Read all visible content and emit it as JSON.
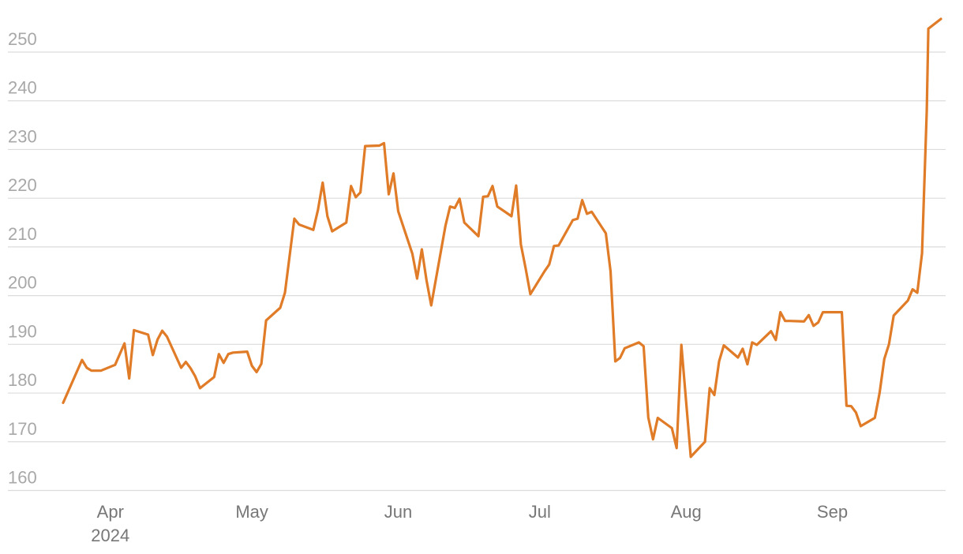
{
  "chart_data": {
    "type": "line",
    "ylim": [
      157,
      258
    ],
    "y_ticks": [
      160,
      170,
      180,
      190,
      200,
      210,
      220,
      230,
      240,
      250
    ],
    "x_ticks": [
      {
        "date": "2024-04-01",
        "label": "Apr",
        "sublabel": "2024"
      },
      {
        "date": "2024-05-01",
        "label": "May",
        "sublabel": ""
      },
      {
        "date": "2024-06-01",
        "label": "Jun",
        "sublabel": ""
      },
      {
        "date": "2024-07-01",
        "label": "Jul",
        "sublabel": ""
      },
      {
        "date": "2024-08-01",
        "label": "Aug",
        "sublabel": ""
      },
      {
        "date": "2024-09-01",
        "label": "Sep",
        "sublabel": ""
      }
    ],
    "xlim": [
      "2024-03-20",
      "2024-09-26"
    ],
    "grid": true,
    "line_color": "#e07b27",
    "series": [
      {
        "points": [
          [
            "2024-03-22",
            178
          ],
          [
            "2024-03-26",
            186.8
          ],
          [
            "2024-03-27",
            185.2
          ],
          [
            "2024-03-28",
            184.6
          ],
          [
            "2024-03-29",
            184.6
          ],
          [
            "2024-03-30",
            184.6
          ],
          [
            "2024-04-02",
            185.8
          ],
          [
            "2024-04-04",
            190.2
          ],
          [
            "2024-04-05",
            183
          ],
          [
            "2024-04-06",
            192.9
          ],
          [
            "2024-04-09",
            192
          ],
          [
            "2024-04-10",
            187.8
          ],
          [
            "2024-04-11",
            191
          ],
          [
            "2024-04-12",
            192.8
          ],
          [
            "2024-04-13",
            191.6
          ],
          [
            "2024-04-16",
            185.2
          ],
          [
            "2024-04-17",
            186.4
          ],
          [
            "2024-04-18",
            185.1
          ],
          [
            "2024-04-19",
            183.4
          ],
          [
            "2024-04-20",
            181
          ],
          [
            "2024-04-23",
            183.3
          ],
          [
            "2024-04-24",
            188
          ],
          [
            "2024-04-25",
            186.2
          ],
          [
            "2024-04-26",
            188
          ],
          [
            "2024-04-27",
            188.3
          ],
          [
            "2024-04-30",
            188.5
          ],
          [
            "2024-05-01",
            185.6
          ],
          [
            "2024-05-02",
            184.3
          ],
          [
            "2024-05-03",
            186
          ],
          [
            "2024-05-04",
            194.9
          ],
          [
            "2024-05-07",
            197.5
          ],
          [
            "2024-05-08",
            200.6
          ],
          [
            "2024-05-10",
            215.8
          ],
          [
            "2024-05-11",
            214.6
          ],
          [
            "2024-05-14",
            213.5
          ],
          [
            "2024-05-15",
            217.6
          ],
          [
            "2024-05-16",
            223.2
          ],
          [
            "2024-05-17",
            216.3
          ],
          [
            "2024-05-18",
            213.2
          ],
          [
            "2024-05-21",
            215
          ],
          [
            "2024-05-22",
            222.5
          ],
          [
            "2024-05-23",
            220.2
          ],
          [
            "2024-05-24",
            221.2
          ],
          [
            "2024-05-25",
            230.7
          ],
          [
            "2024-05-28",
            230.8
          ],
          [
            "2024-05-29",
            231.3
          ],
          [
            "2024-05-30",
            220.8
          ],
          [
            "2024-05-31",
            225.1
          ],
          [
            "2024-06-01",
            217.3
          ],
          [
            "2024-06-04",
            208.6
          ],
          [
            "2024-06-05",
            203.5
          ],
          [
            "2024-06-06",
            209.5
          ],
          [
            "2024-06-07",
            203.2
          ],
          [
            "2024-06-08",
            198
          ],
          [
            "2024-06-11",
            214.3
          ],
          [
            "2024-06-12",
            218.3
          ],
          [
            "2024-06-13",
            218
          ],
          [
            "2024-06-14",
            219.9
          ],
          [
            "2024-06-15",
            215
          ],
          [
            "2024-06-18",
            212.2
          ],
          [
            "2024-06-19",
            220.3
          ],
          [
            "2024-06-20",
            220.4
          ],
          [
            "2024-06-21",
            222.5
          ],
          [
            "2024-06-22",
            218.3
          ],
          [
            "2024-06-25",
            216.3
          ],
          [
            "2024-06-26",
            222.6
          ],
          [
            "2024-06-27",
            210.5
          ],
          [
            "2024-06-28",
            205.6
          ],
          [
            "2024-06-29",
            200.3
          ],
          [
            "2024-07-02",
            205
          ],
          [
            "2024-07-03",
            206.4
          ],
          [
            "2024-07-04",
            210.2
          ],
          [
            "2024-07-05",
            210.3
          ],
          [
            "2024-07-08",
            215.5
          ],
          [
            "2024-07-09",
            215.8
          ],
          [
            "2024-07-10",
            219.6
          ],
          [
            "2024-07-11",
            216.8
          ],
          [
            "2024-07-12",
            217.2
          ],
          [
            "2024-07-15",
            212.8
          ],
          [
            "2024-07-16",
            205
          ],
          [
            "2024-07-17",
            186.5
          ],
          [
            "2024-07-18",
            187.2
          ],
          [
            "2024-07-19",
            189.2
          ],
          [
            "2024-07-22",
            190.4
          ],
          [
            "2024-07-23",
            189.6
          ],
          [
            "2024-07-24",
            175
          ],
          [
            "2024-07-25",
            170.5
          ],
          [
            "2024-07-26",
            174.9
          ],
          [
            "2024-07-29",
            172.8
          ],
          [
            "2024-07-30",
            168.7
          ],
          [
            "2024-07-31",
            189.9
          ],
          [
            "2024-08-02",
            166.9
          ],
          [
            "2024-08-05",
            170
          ],
          [
            "2024-08-06",
            181
          ],
          [
            "2024-08-07",
            179.6
          ],
          [
            "2024-08-08",
            186.5
          ],
          [
            "2024-08-09",
            189.8
          ],
          [
            "2024-08-12",
            187.3
          ],
          [
            "2024-08-13",
            189.1
          ],
          [
            "2024-08-14",
            185.9
          ],
          [
            "2024-08-15",
            190.4
          ],
          [
            "2024-08-16",
            189.9
          ],
          [
            "2024-08-19",
            192.7
          ],
          [
            "2024-08-20",
            190.9
          ],
          [
            "2024-08-21",
            196.6
          ],
          [
            "2024-08-22",
            194.8
          ],
          [
            "2024-08-23",
            194.8
          ],
          [
            "2024-08-26",
            194.7
          ],
          [
            "2024-08-27",
            196
          ],
          [
            "2024-08-28",
            193.8
          ],
          [
            "2024-08-29",
            194.5
          ],
          [
            "2024-08-30",
            196.6
          ],
          [
            "2024-09-03",
            196.6
          ],
          [
            "2024-09-04",
            177.4
          ],
          [
            "2024-09-05",
            177.3
          ],
          [
            "2024-09-06",
            176
          ],
          [
            "2024-09-07",
            173.2
          ],
          [
            "2024-09-10",
            174.9
          ],
          [
            "2024-09-11",
            180
          ],
          [
            "2024-09-12",
            187
          ],
          [
            "2024-09-13",
            190
          ],
          [
            "2024-09-14",
            195.9
          ],
          [
            "2024-09-17",
            199
          ],
          [
            "2024-09-18",
            201.3
          ],
          [
            "2024-09-19",
            200.6
          ],
          [
            "2024-09-20",
            208.7
          ],
          [
            "2024-09-21",
            238
          ],
          [
            "2024-09-21",
            254.8
          ],
          [
            "2024-09-24",
            256.8
          ]
        ]
      }
    ]
  }
}
